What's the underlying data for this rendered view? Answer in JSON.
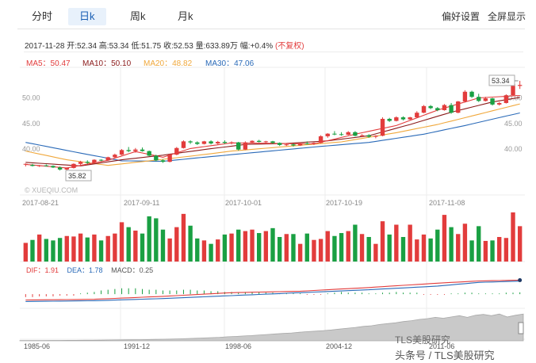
{
  "tabs": {
    "fenshi": "分时",
    "rik": "日k",
    "zhouk": "周k",
    "yuek": "月k"
  },
  "right": {
    "prefs": "偏好设置",
    "fullscreen": "全屏显示"
  },
  "info": {
    "date": "2017-11-28",
    "open_label": "开",
    "open": "52.34",
    "high_label": "高",
    "high": "53.34",
    "low_label": "低",
    "low": "51.75",
    "close_label": "收",
    "close": "52.53",
    "vol_label": "量",
    "vol": "633.89万",
    "chg_label": "幅",
    "chg": "+0.4%",
    "adj": "(不复权)"
  },
  "ma": {
    "ma5": "MA5：50.47",
    "ma10": "MA10：50.10",
    "ma20": "MA20：48.82",
    "ma30": "MA30：47.06",
    "colors": {
      "ma5": "#e23c3c",
      "ma10": "#8b1a1a",
      "ma20": "#f0a83c",
      "ma30": "#2a6ab8"
    }
  },
  "macd": {
    "dif": "DIF：1.91",
    "dea": "DEA：1.78",
    "macd": "MACD：0.25"
  },
  "colors": {
    "up": "#e23c3c",
    "down": "#1aa043",
    "blue": "#2a6ab8",
    "area": "#c9c9c9"
  },
  "watermark": {
    "logo": "XUEQIU.COM",
    "line1": "TLS美股研究",
    "line2": "头条号 / TLS美股研究"
  },
  "chart_data": [
    {
      "type": "candlestick",
      "title": "",
      "x_ticks": [
        "2017-08-21",
        "2017-09-11",
        "2017-10-01",
        "2017-10-19",
        "2017-11-08"
      ],
      "y_ticks_left": [
        "50.00",
        "45.00",
        "40.00"
      ],
      "y_ticks_right": [
        "50.00",
        "45.00",
        "40.00"
      ],
      "ylim": [
        33.5,
        55.5
      ],
      "annotations": {
        "high": "53.34",
        "low": "35.82"
      },
      "candles": [
        [
          37,
          37.2,
          36.6,
          37.1
        ],
        [
          36.9,
          37.1,
          36.6,
          36.7
        ],
        [
          36.7,
          36.9,
          36.5,
          36.8
        ],
        [
          36.8,
          37,
          36.6,
          36.7
        ],
        [
          36.7,
          36.8,
          36.3,
          36.4
        ],
        [
          36.4,
          36.6,
          35.8,
          36.0
        ],
        [
          36.0,
          36.4,
          35.82,
          36.3
        ],
        [
          36.3,
          37.2,
          36.2,
          37.1
        ],
        [
          37.1,
          37.7,
          36.9,
          37.5
        ],
        [
          37.5,
          37.8,
          37.1,
          37.3
        ],
        [
          37.3,
          38.0,
          37.2,
          37.9
        ],
        [
          37.9,
          38.0,
          37.6,
          37.8
        ],
        [
          37.8,
          38.5,
          37.7,
          38.4
        ],
        [
          38.4,
          39.1,
          38.2,
          38.9
        ],
        [
          38.9,
          40.0,
          38.8,
          39.8
        ],
        [
          39.8,
          40.4,
          39.4,
          39.6
        ],
        [
          39.6,
          40.2,
          39.3,
          39.9
        ],
        [
          39.9,
          40.3,
          39.5,
          39.6
        ],
        [
          39.6,
          39.7,
          38.6,
          38.7
        ],
        [
          38.7,
          38.9,
          37.6,
          37.8
        ],
        [
          37.8,
          38.0,
          37.3,
          37.5
        ],
        [
          37.5,
          39.1,
          37.4,
          38.9
        ],
        [
          38.9,
          40.4,
          38.8,
          40.2
        ],
        [
          40.2,
          41.7,
          40.1,
          41.5
        ],
        [
          41.5,
          41.7,
          41.0,
          41.3
        ],
        [
          41.3,
          41.5,
          40.8,
          41.0
        ],
        [
          41.0,
          41.6,
          40.9,
          41.5
        ],
        [
          41.5,
          41.7,
          40.9,
          41.1
        ],
        [
          41.1,
          41.6,
          40.9,
          41.4
        ],
        [
          41.4,
          41.7,
          41.0,
          41.2
        ],
        [
          41.2,
          41.5,
          40.9,
          41.3
        ],
        [
          41.3,
          41.4,
          39.7,
          39.9
        ],
        [
          39.9,
          41.5,
          39.8,
          41.3
        ],
        [
          41.3,
          41.7,
          41.1,
          41.6
        ],
        [
          41.6,
          41.8,
          41.3,
          41.4
        ],
        [
          41.4,
          41.6,
          41.0,
          41.5
        ],
        [
          41.5,
          41.6,
          41.0,
          41.2
        ],
        [
          41.2,
          41.3,
          40.6,
          40.8
        ],
        [
          40.8,
          41.1,
          40.6,
          40.9
        ],
        [
          40.9,
          41.1,
          40.5,
          40.7
        ],
        [
          40.7,
          41.3,
          40.6,
          41.1
        ],
        [
          41.1,
          41.5,
          40.9,
          41.0
        ],
        [
          41.0,
          41.3,
          40.8,
          41.2
        ],
        [
          41.2,
          42.7,
          41.1,
          42.5
        ],
        [
          42.5,
          43.1,
          42.2,
          43.0
        ],
        [
          43.0,
          43.5,
          42.7,
          42.9
        ],
        [
          42.9,
          43.3,
          42.6,
          42.8
        ],
        [
          42.8,
          43.5,
          42.7,
          43.3
        ],
        [
          43.3,
          43.5,
          42.5,
          42.6
        ],
        [
          42.6,
          42.9,
          42.3,
          42.7
        ],
        [
          42.7,
          42.9,
          42.2,
          42.4
        ],
        [
          42.4,
          42.7,
          42.1,
          42.6
        ],
        [
          42.6,
          46.2,
          42.5,
          45.9
        ],
        [
          45.9,
          46.1,
          45.3,
          45.5
        ],
        [
          45.5,
          46.4,
          45.4,
          46.2
        ],
        [
          46.2,
          46.4,
          45.6,
          45.8
        ],
        [
          45.8,
          46.3,
          45.7,
          46.2
        ],
        [
          46.2,
          47.4,
          46.1,
          47.1
        ],
        [
          47.1,
          48.6,
          47.0,
          48.4
        ],
        [
          48.4,
          48.6,
          47.8,
          48.0
        ],
        [
          48.0,
          48.2,
          47.4,
          47.6
        ],
        [
          47.6,
          48.8,
          47.5,
          48.6
        ],
        [
          48.6,
          49.0,
          46.9,
          47.1
        ],
        [
          47.1,
          49.4,
          47.0,
          49.3
        ],
        [
          49.3,
          51.5,
          49.1,
          51.2
        ],
        [
          51.2,
          51.4,
          50.0,
          50.2
        ],
        [
          50.2,
          50.8,
          49.2,
          49.4
        ],
        [
          49.4,
          50.2,
          49.3,
          49.9
        ],
        [
          49.9,
          50.0,
          48.5,
          48.7
        ],
        [
          48.7,
          49.2,
          48.5,
          49.0
        ],
        [
          49.0,
          50.7,
          48.9,
          50.5
        ],
        [
          50.5,
          52.9,
          50.4,
          52.7
        ],
        [
          52.34,
          53.34,
          51.75,
          52.53
        ]
      ],
      "ma_lines": {
        "ma5": [
          [
            0,
            37.0
          ],
          [
            6,
            36.3
          ],
          [
            12,
            37.8
          ],
          [
            16,
            39.5
          ],
          [
            20,
            38.4
          ],
          [
            24,
            40.1
          ],
          [
            30,
            41.2
          ],
          [
            36,
            41.1
          ],
          [
            42,
            41.0
          ],
          [
            48,
            42.9
          ],
          [
            54,
            44.6
          ],
          [
            60,
            47.6
          ],
          [
            66,
            50.0
          ],
          [
            72,
            50.47
          ]
        ],
        "ma10": [
          [
            0,
            37.4
          ],
          [
            8,
            36.7
          ],
          [
            14,
            37.9
          ],
          [
            20,
            38.8
          ],
          [
            26,
            39.9
          ],
          [
            32,
            40.9
          ],
          [
            38,
            41.1
          ],
          [
            44,
            41.6
          ],
          [
            50,
            42.6
          ],
          [
            56,
            44.8
          ],
          [
            62,
            47.2
          ],
          [
            68,
            49.2
          ],
          [
            72,
            50.1
          ]
        ],
        "ma20": [
          [
            0,
            39.6
          ],
          [
            6,
            37.9
          ],
          [
            12,
            36.8
          ],
          [
            18,
            37.7
          ],
          [
            24,
            38.6
          ],
          [
            30,
            39.6
          ],
          [
            38,
            40.5
          ],
          [
            46,
            41.4
          ],
          [
            54,
            43.2
          ],
          [
            60,
            44.8
          ],
          [
            66,
            46.8
          ],
          [
            72,
            48.82
          ]
        ],
        "ma30": [
          [
            0,
            41.3
          ],
          [
            8,
            39.2
          ],
          [
            14,
            37.7
          ],
          [
            20,
            37.6
          ],
          [
            26,
            38.4
          ],
          [
            34,
            39.4
          ],
          [
            42,
            40.4
          ],
          [
            50,
            41.3
          ],
          [
            58,
            42.9
          ],
          [
            64,
            44.6
          ],
          [
            72,
            47.06
          ]
        ]
      }
    },
    {
      "type": "bar",
      "title": "",
      "values": [
        38,
        44,
        55,
        46,
        43,
        48,
        52,
        51,
        57,
        49,
        55,
        43,
        52,
        57,
        80,
        70,
        63,
        57,
        92,
        88,
        65,
        47,
        70,
        97,
        73,
        47,
        43,
        36,
        45,
        55,
        57,
        65,
        62,
        65,
        58,
        62,
        68,
        50,
        56,
        56,
        36,
        57,
        44,
        46,
        62,
        52,
        58,
        62,
        75,
        56,
        50,
        36,
        82,
        55,
        75,
        50,
        75,
        45,
        55,
        47,
        65,
        95,
        70,
        56,
        77,
        43,
        72,
        42,
        43,
        50,
        48,
        100,
        72
      ],
      "up_down": "close_vs_open"
    },
    {
      "type": "line",
      "title": "",
      "series": [
        {
          "name": "DIF",
          "values": [
            [
              0,
              -0.8
            ],
            [
              10,
              -0.7
            ],
            [
              20,
              -0.3
            ],
            [
              30,
              0.2
            ],
            [
              40,
              0.4
            ],
            [
              50,
              0.9
            ],
            [
              60,
              1.5
            ],
            [
              66,
              1.8
            ],
            [
              72,
              1.91
            ]
          ]
        },
        {
          "name": "DEA",
          "values": [
            [
              0,
              -1.0
            ],
            [
              10,
              -0.9
            ],
            [
              20,
              -0.6
            ],
            [
              30,
              -0.2
            ],
            [
              40,
              0.2
            ],
            [
              50,
              0.6
            ],
            [
              60,
              1.1
            ],
            [
              66,
              1.6
            ],
            [
              72,
              1.78
            ]
          ]
        }
      ],
      "histogram": [
        -0.4,
        -0.4,
        -0.3,
        -0.3,
        -0.3,
        -0.2,
        -0.2,
        -0.2,
        0.1,
        0.2,
        0.3,
        0.5,
        0.6,
        0.7,
        0.8,
        0.8,
        0.8,
        0.7,
        0.6,
        0.6,
        0.5,
        0.5,
        0.5,
        0.6,
        0.6,
        0.5,
        0.5,
        0.4,
        0.4,
        0.3,
        0.3,
        0.2,
        0.3,
        0.3,
        0.3,
        0.2,
        0.2,
        0.1,
        0.1,
        0.1,
        0.1,
        -0.1,
        -0.1,
        -0.1,
        0.1,
        0.2,
        0.3,
        0.2,
        0.2,
        0.2,
        0.1,
        0.1,
        0.2,
        0.2,
        0.3,
        0.2,
        0.2,
        0.2,
        -0.1,
        -0.1,
        -0.1,
        -0.1,
        0.1,
        0.1,
        0.2,
        0.2,
        0.1,
        0.1,
        0.1,
        0.1,
        0.2,
        0.2,
        0.25
      ],
      "ylim": [
        -1.5,
        2.5
      ]
    },
    {
      "type": "area",
      "title": "",
      "x_ticks": [
        "1985-06",
        "1991-12",
        "1998-06",
        "2004-12",
        "2011-06"
      ],
      "values": [
        0.3,
        0.3,
        0.35,
        0.4,
        0.45,
        0.5,
        0.55,
        0.6,
        0.65,
        0.7,
        0.8,
        0.9,
        1.0,
        1.1,
        1.2,
        1.35,
        1.5,
        1.7,
        1.9,
        2.1,
        2.4,
        2.7,
        3.0,
        3.4,
        3.8,
        4.2,
        4.8,
        5.2,
        5.8,
        6.2,
        7.0,
        7.6,
        8.2,
        8.8,
        9.4,
        10.2,
        11.0,
        11.5,
        12.2,
        13.0,
        14.0,
        15.0,
        16.0,
        17.2,
        18.0,
        19.5,
        20.5,
        21.5,
        23.0,
        24.0,
        25.5,
        26.5,
        28.0,
        27.0,
        28.5,
        30.0,
        28.0,
        30.5,
        31.5,
        30.0,
        32.0,
        28.5,
        30.5,
        32.0
      ],
      "ylim": [
        0,
        35
      ]
    }
  ]
}
